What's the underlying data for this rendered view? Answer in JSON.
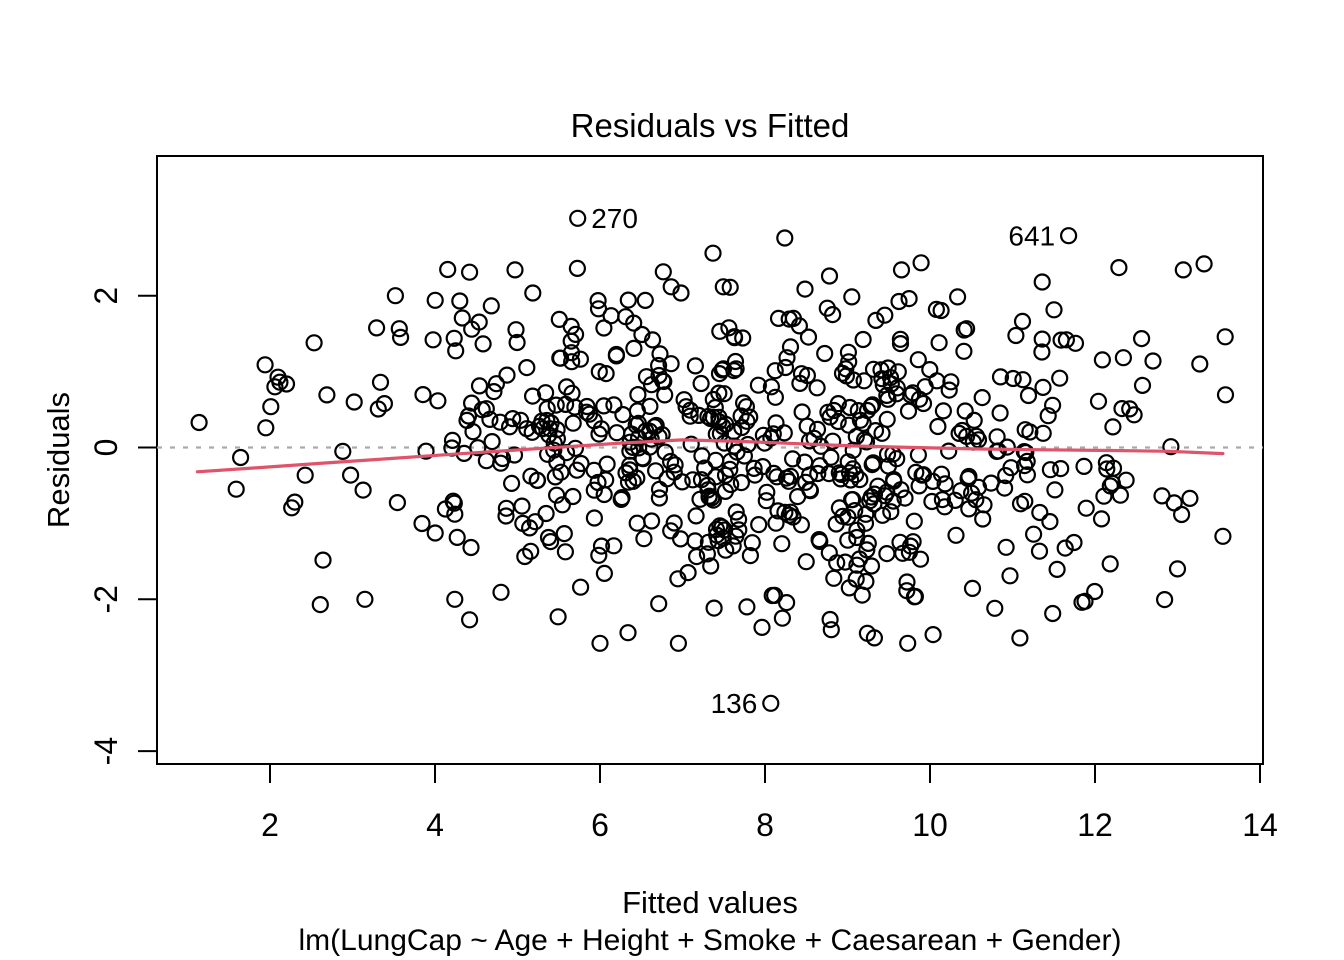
{
  "chart_data": {
    "type": "scatter",
    "title": "Residuals vs Fitted",
    "xlabel": "Fitted values",
    "ylabel": "Residuals",
    "model_formula": "lm(LungCap ~ Age + Height + Smoke + Caesarean + Gender)",
    "x_ticks": [
      2,
      4,
      6,
      8,
      10,
      12,
      14
    ],
    "y_ticks": [
      -4,
      -2,
      0,
      2
    ],
    "xlim": [
      0.63,
      14.03
    ],
    "ylim": [
      -4.17,
      3.83
    ],
    "grid": false,
    "legend": null,
    "zero_line": {
      "y": 0,
      "style": "dotted",
      "color": "#aaaaaa",
      "width": 2.2
    },
    "point_style": {
      "shape": "open-circle",
      "radius": 7.5,
      "color": "#000000",
      "stroke_width": 2.2,
      "fill": "none"
    },
    "labeled_points": [
      {
        "label": "270",
        "x": 5.73,
        "y": 3.02,
        "side": "right"
      },
      {
        "label": "641",
        "x": 11.68,
        "y": 2.79,
        "side": "left"
      },
      {
        "label": "136",
        "x": 8.07,
        "y": -3.37,
        "side": "left"
      }
    ],
    "anchor_points": [
      [
        1.14,
        0.33
      ],
      [
        1.59,
        -0.55
      ],
      [
        1.94,
        1.09
      ],
      [
        2.06,
        0.8
      ],
      [
        2.12,
        0.86
      ],
      [
        2.3,
        -0.72
      ],
      [
        2.61,
        -2.07
      ],
      [
        3.15,
        -2.0
      ],
      [
        3.52,
        2.0
      ],
      [
        4.24,
        -2.0
      ],
      [
        4.3,
        1.93
      ],
      [
        4.42,
        2.31
      ],
      [
        4.42,
        -2.27
      ],
      [
        4.97,
        2.34
      ],
      [
        6.0,
        -2.58
      ],
      [
        6.34,
        -2.44
      ],
      [
        6.95,
        -2.58
      ],
      [
        7.37,
        2.56
      ],
      [
        7.78,
        -2.1
      ],
      [
        8.24,
        2.76
      ],
      [
        9.73,
        -2.58
      ],
      [
        11.09,
        -2.51
      ],
      [
        11.36,
        2.18
      ],
      [
        12.29,
        2.37
      ],
      [
        13.07,
        2.34
      ],
      [
        12.92,
        0.01
      ],
      [
        12.96,
        -0.73
      ],
      [
        13.15,
        -0.67
      ],
      [
        13.27,
        1.1
      ],
      [
        13.55,
        -1.17
      ],
      [
        13.0,
        -1.6
      ]
    ],
    "scatter_spec": {
      "n": 640,
      "seed": 1337,
      "x_mean": 7.9,
      "x_sd": 2.45,
      "x_range": [
        1.1,
        13.6
      ],
      "y_mean": 0,
      "y_sd": 1.05,
      "y_range": [
        -2.6,
        2.45
      ]
    },
    "smoother": {
      "color": "#DF536B",
      "width": 3.2,
      "points": [
        [
          1.12,
          -0.32
        ],
        [
          1.8,
          -0.27
        ],
        [
          2.6,
          -0.21
        ],
        [
          3.4,
          -0.15
        ],
        [
          4.2,
          -0.09
        ],
        [
          4.9,
          -0.04
        ],
        [
          5.6,
          0.01
        ],
        [
          6.3,
          0.06
        ],
        [
          7.0,
          0.1
        ],
        [
          7.7,
          0.08
        ],
        [
          8.4,
          0.05
        ],
        [
          9.1,
          0.02
        ],
        [
          9.8,
          0.0
        ],
        [
          10.6,
          -0.02
        ],
        [
          11.4,
          -0.03
        ],
        [
          12.2,
          -0.04
        ],
        [
          12.9,
          -0.05
        ],
        [
          13.55,
          -0.08
        ]
      ]
    }
  }
}
